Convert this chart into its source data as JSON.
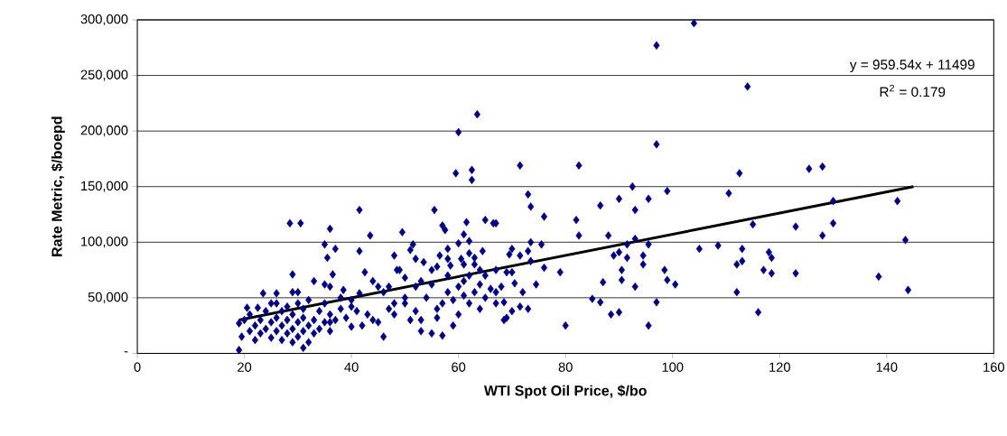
{
  "chart_data": {
    "type": "scatter",
    "xlabel": "WTI Spot Oil Price, $/bo",
    "ylabel": "Rate Metric, $/boepd",
    "xlim": [
      0,
      160
    ],
    "xticks": [
      0,
      20,
      40,
      60,
      80,
      100,
      120,
      140,
      160
    ],
    "ylim": [
      0,
      300000
    ],
    "yticks": [
      {
        "value": 0,
        "label": "-"
      },
      {
        "value": 50000,
        "label": "50,000"
      },
      {
        "value": 100000,
        "label": "100,000"
      },
      {
        "value": 150000,
        "label": "150,000"
      },
      {
        "value": 200000,
        "label": "200,000"
      },
      {
        "value": 250000,
        "label": "250,000"
      },
      {
        "value": 300000,
        "label": "300,000"
      }
    ],
    "grid": "y",
    "marker": "diamond",
    "annotations": [
      "y = 959.54x + 11499",
      "R$^{2}$ = 0.179"
    ],
    "series": [
      {
        "color": "#000080",
        "x": [
          104,
          97,
          114,
          63.5,
          60,
          97,
          71.5,
          82.5,
          92.5,
          73,
          99,
          112.5,
          125.5,
          128,
          110.5,
          130,
          142,
          73.5,
          90,
          95.5,
          86.5,
          93,
          76,
          82,
          82.5,
          88,
          115,
          123,
          128,
          130,
          143.5,
          67,
          73.5,
          75.5,
          93,
          91.5,
          95.5,
          105,
          108.5,
          113,
          118,
          118.5,
          70,
          69.5,
          71.5,
          73,
          73.5,
          89,
          90,
          91.5,
          94.5,
          94.5,
          112,
          113,
          76,
          79,
          69,
          70,
          90.5,
          98.5,
          117,
          118.5,
          123,
          138.5,
          144,
          70.5,
          74.5,
          87,
          90.5,
          93,
          99,
          100.5,
          67,
          72,
          112,
          68.5,
          85,
          86.5,
          97,
          70,
          71.5,
          73,
          68.5,
          88.5,
          90,
          116,
          80,
          95.5,
          59.5,
          62.5,
          62.5,
          41.5,
          55.5,
          28.5,
          30.5,
          36,
          35,
          37,
          35.5,
          41.5,
          43.5,
          49.5,
          57,
          57.5,
          61.5,
          65,
          66.5,
          61,
          60,
          62,
          51.5,
          51,
          48,
          58,
          56.5,
          53.5,
          56,
          58.5,
          64.5,
          63,
          60.5,
          29,
          36.5,
          42.5,
          48.5,
          19,
          19.5,
          19,
          20.5,
          23.5,
          22.5,
          26,
          29,
          35,
          38.5,
          31,
          41.5,
          36,
          40,
          20,
          21,
          21,
          22,
          22,
          23,
          23,
          24,
          24,
          25,
          25,
          26,
          26,
          26,
          27,
          27,
          27,
          28,
          28,
          28,
          29,
          29,
          29,
          30,
          30,
          30,
          31,
          31,
          31,
          32,
          32,
          32,
          33,
          33,
          34,
          34,
          35,
          35,
          36,
          37,
          38,
          39,
          40,
          41,
          42,
          43,
          44,
          45,
          46,
          47,
          48,
          50,
          51,
          52,
          53,
          45,
          46,
          47,
          49,
          50,
          50,
          52,
          53,
          54,
          55,
          55,
          56,
          57,
          57,
          58,
          58,
          59,
          60,
          60,
          61,
          61,
          62,
          62,
          63,
          63,
          64,
          64,
          65,
          65,
          66,
          67,
          67,
          68,
          69,
          53,
          56,
          59,
          44,
          38,
          40,
          36,
          33,
          30,
          25,
          36,
          48,
          62,
          58,
          61,
          64,
          55,
          52
        ],
        "values": [
          297000,
          277000,
          240000,
          215000,
          199000,
          188000,
          169000,
          169000,
          150000,
          143000,
          146000,
          162000,
          166000,
          168000,
          144000,
          137000,
          137000,
          132000,
          139000,
          139000,
          133000,
          129000,
          123000,
          120000,
          106000,
          106000,
          116000,
          114000,
          106000,
          117000,
          102000,
          117000,
          100000,
          98000,
          103000,
          98000,
          98000,
          94000,
          97000,
          94000,
          91000,
          86000,
          94000,
          89000,
          88000,
          92000,
          83000,
          88000,
          91000,
          86000,
          88000,
          80000,
          80000,
          83000,
          77000,
          73000,
          73000,
          73000,
          75000,
          75000,
          75000,
          72000,
          72000,
          69000,
          57000,
          63000,
          62000,
          64000,
          66000,
          60000,
          66000,
          62000,
          55000,
          55000,
          55000,
          46000,
          49000,
          46000,
          46000,
          38000,
          42000,
          40000,
          30000,
          35000,
          37000,
          37000,
          25000,
          25000,
          162000,
          165000,
          156000,
          129000,
          129000,
          117000,
          117000,
          112000,
          98000,
          94000,
          86000,
          92000,
          106000,
          109000,
          115000,
          111000,
          118000,
          120000,
          117000,
          107000,
          99000,
          101000,
          98000,
          93000,
          88000,
          94000,
          88000,
          82000,
          78000,
          79000,
          92000,
          86000,
          85000,
          71000,
          71000,
          73000,
          75000,
          3000,
          15000,
          27000,
          41000,
          54000,
          41000,
          54000,
          55000,
          62000,
          57000,
          5000,
          54000,
          28000,
          24000,
          30000,
          20000,
          35000,
          25000,
          12000,
          30000,
          18000,
          22000,
          38000,
          28000,
          14000,
          32000,
          20000,
          45000,
          25000,
          12000,
          38000,
          30000,
          18000,
          42000,
          22000,
          35000,
          10000,
          28000,
          45000,
          15000,
          32000,
          20000,
          40000,
          25000,
          10000,
          48000,
          30000,
          18000,
          38000,
          22000,
          28000,
          45000,
          35000,
          30000,
          40000,
          32000,
          42000,
          38000,
          25000,
          35000,
          30000,
          28000,
          15000,
          40000,
          35000,
          45000,
          30000,
          38000,
          20000,
          60000,
          55000,
          60000,
          75000,
          68000,
          50000,
          60000,
          65000,
          50000,
          62000,
          18000,
          40000,
          45000,
          16000,
          55000,
          70000,
          48000,
          60000,
          35000,
          65000,
          52000,
          70000,
          45000,
          55000,
          80000,
          62000,
          40000,
          70000,
          50000,
          58000,
          45000,
          75000,
          60000,
          32000,
          30000,
          32000,
          25000,
          65000,
          50000,
          48000,
          60000,
          65000,
          55000,
          45000,
          20000,
          45000,
          90000,
          85000,
          80000,
          75000,
          75000,
          85000
        ]
      },
      {
        "type": "line",
        "color": "#000000",
        "marker": "none",
        "x": [
          19,
          145
        ],
        "values": [
          30000,
          150000
        ]
      }
    ]
  }
}
